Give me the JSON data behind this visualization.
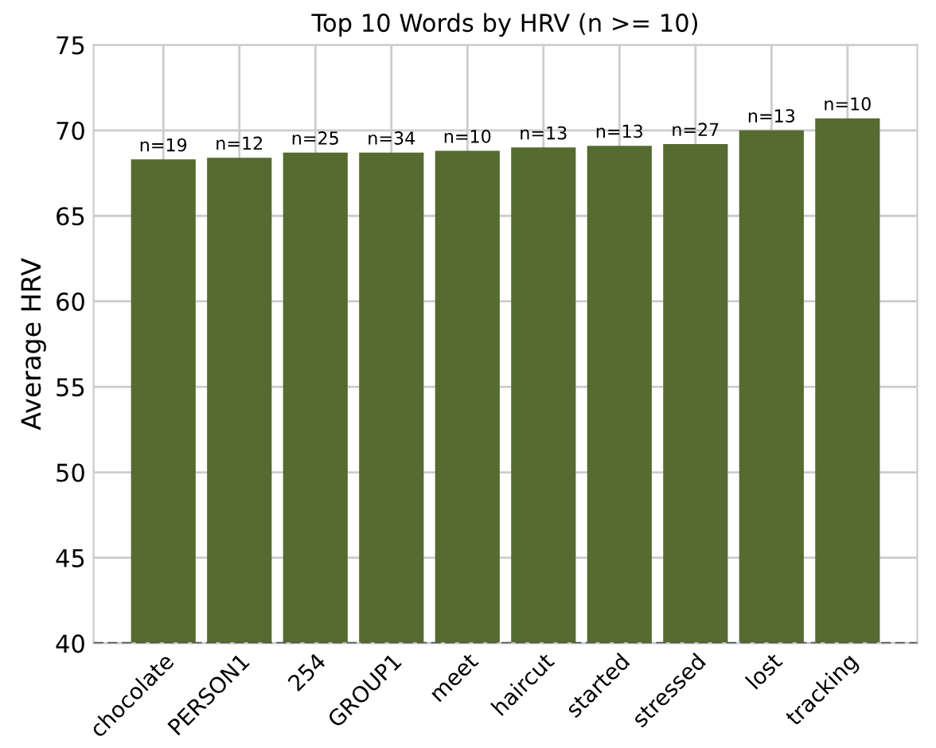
{
  "chart_data": {
    "type": "bar",
    "title": "Top 10 Words by HRV (n >= 10)",
    "ylabel": "Average HRV",
    "categories": [
      "chocolate",
      "PERSON1",
      "254",
      "GROUP1",
      "meet",
      "haircut",
      "started",
      "stressed",
      "lost",
      "tracking"
    ],
    "values": [
      68.3,
      68.4,
      68.7,
      68.7,
      68.8,
      69.0,
      69.1,
      69.2,
      70.0,
      70.7
    ],
    "annotations": [
      {
        "text": "n=19",
        "x": "chocolate",
        "y": 68.3
      },
      {
        "text": "n=12",
        "x": "PERSON1",
        "y": 68.4
      },
      {
        "text": "n=25",
        "x": "254",
        "y": 68.7
      },
      {
        "text": "n=34",
        "x": "GROUP1",
        "y": 68.7
      },
      {
        "text": "n=10",
        "x": "meet",
        "y": 68.8
      },
      {
        "text": "n=13",
        "x": "haircut",
        "y": 69.0
      },
      {
        "text": "n=13",
        "x": "started",
        "y": 69.1
      },
      {
        "text": "n=27",
        "x": "stressed",
        "y": 69.2
      },
      {
        "text": "n=13",
        "x": "lost",
        "y": 70.0
      },
      {
        "text": "n=10",
        "x": "tracking",
        "y": 70.7
      }
    ],
    "color": "#556b2f",
    "ylim": [
      40,
      75
    ],
    "yticks": [
      40,
      45,
      50,
      55,
      60,
      65,
      70,
      75
    ],
    "grid": true,
    "ref_lines": [
      {
        "axis": "y",
        "value": 40,
        "color": "#555555",
        "line_style": "dashed"
      }
    ]
  }
}
